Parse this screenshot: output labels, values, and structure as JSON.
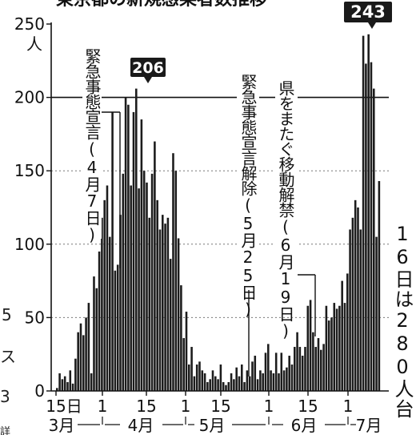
{
  "chart_data": {
    "type": "bar",
    "title": "東京都の新規感染者数推移",
    "ylabel": "人",
    "ylim": [
      0,
      250
    ],
    "y_ticks": [
      "0",
      "50",
      "100",
      "150",
      "200",
      "250"
    ],
    "x_day_ticks": [
      "15日",
      "1",
      "15",
      "1",
      "15",
      "1",
      "15",
      "1"
    ],
    "month_labels": [
      "3月",
      "4月",
      "5月",
      "6月",
      "7月"
    ],
    "annotations": {
      "peak_april": "206",
      "peak_july": "243",
      "emergency_declared": "緊急事態宣言(4月7日)",
      "emergency_lifted": "緊急事態宣言解除(5月25日)",
      "travel_lifted": "県をまたぐ移動解禁(6月19日)",
      "side_note": "16日は280人台"
    },
    "side_fragments": [
      "5",
      "ス",
      "3",
      "詳"
    ],
    "values": [
      2,
      12,
      8,
      10,
      6,
      14,
      5,
      22,
      40,
      46,
      38,
      50,
      60,
      12,
      78,
      70,
      95,
      118,
      130,
      140,
      105,
      190,
      82,
      86,
      120,
      148,
      200,
      195,
      140,
      190,
      206,
      138,
      185,
      150,
      142,
      118,
      148,
      170,
      130,
      110,
      120,
      114,
      118,
      90,
      162,
      150,
      104,
      72,
      36,
      54,
      18,
      30,
      10,
      18,
      20,
      14,
      12,
      6,
      8,
      14,
      10,
      8,
      18,
      6,
      4,
      6,
      12,
      8,
      16,
      10,
      18,
      6,
      14,
      10,
      20,
      24,
      8,
      14,
      12,
      26,
      32,
      14,
      12,
      26,
      12,
      26,
      14,
      16,
      24,
      18,
      30,
      40,
      30,
      24,
      30,
      58,
      62,
      40,
      30,
      36,
      28,
      32,
      58,
      48,
      50,
      60,
      56,
      58,
      75,
      60,
      80,
      110,
      118,
      130,
      125,
      110,
      242,
      223,
      243,
      224,
      206,
      105,
      143
    ]
  }
}
